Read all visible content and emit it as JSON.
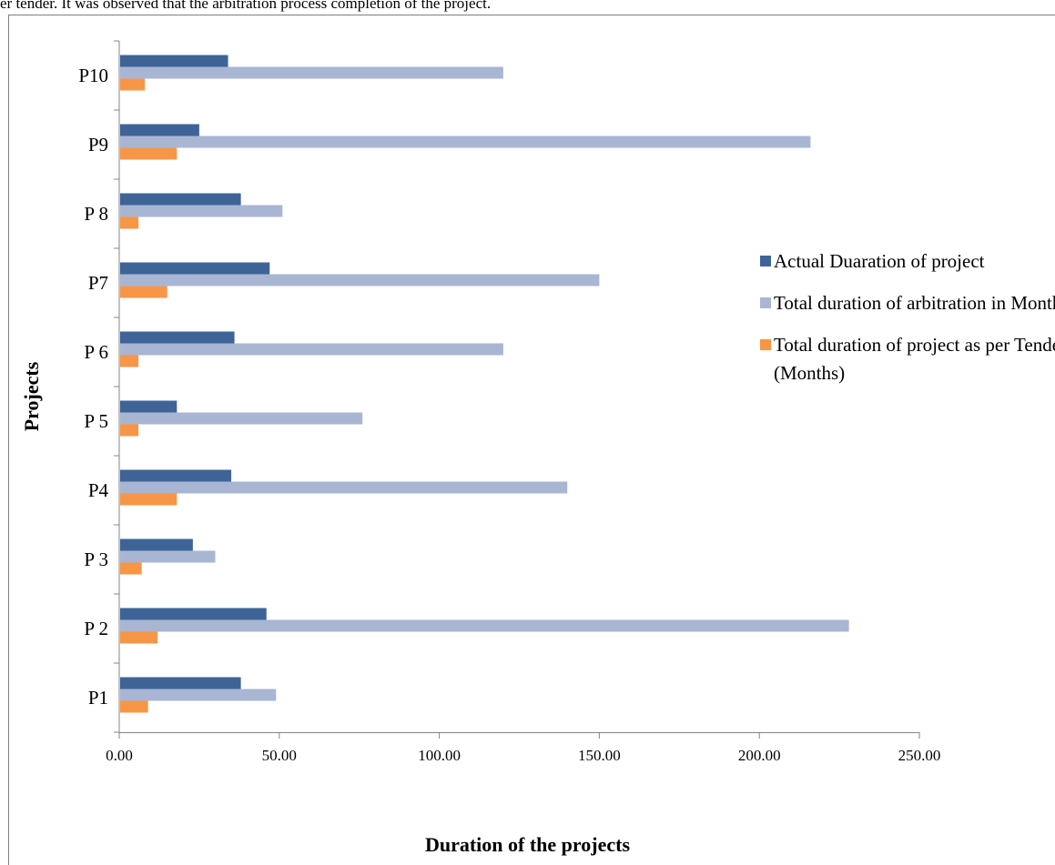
{
  "page": {
    "top_text": "er tender. It was observed that the arbitration process     completion of the project."
  },
  "chart_data": {
    "type": "bar",
    "orientation": "horizontal",
    "categories": [
      "P1",
      "P 2",
      "P 3",
      "P4",
      "P 5",
      "P 6",
      "P7",
      "P 8",
      "P9",
      "P10"
    ],
    "series": [
      {
        "name": "Actual Duaration of project",
        "color": "#3e6497",
        "values": [
          38,
          46,
          23,
          35,
          18,
          36,
          47,
          38,
          25,
          34
        ]
      },
      {
        "name": "Total duration of arbitration in Months",
        "color": "#a8b6d4",
        "values": [
          49,
          228,
          30,
          140,
          76,
          120,
          150,
          51,
          216,
          120
        ]
      },
      {
        "name": "Total duration  of project as per Tender (Months)",
        "color": "#f79646",
        "values": [
          9,
          12,
          7,
          18,
          6,
          6,
          15,
          6,
          18,
          8
        ]
      }
    ],
    "xlim": [
      0,
      250
    ],
    "xticks": [
      "0.00",
      "50.00",
      "100.00",
      "150.00",
      "200.00",
      "250.00"
    ],
    "xlabel": "Duration of the projects",
    "ylabel": "Projects",
    "legend_position": "right",
    "grid": false
  }
}
